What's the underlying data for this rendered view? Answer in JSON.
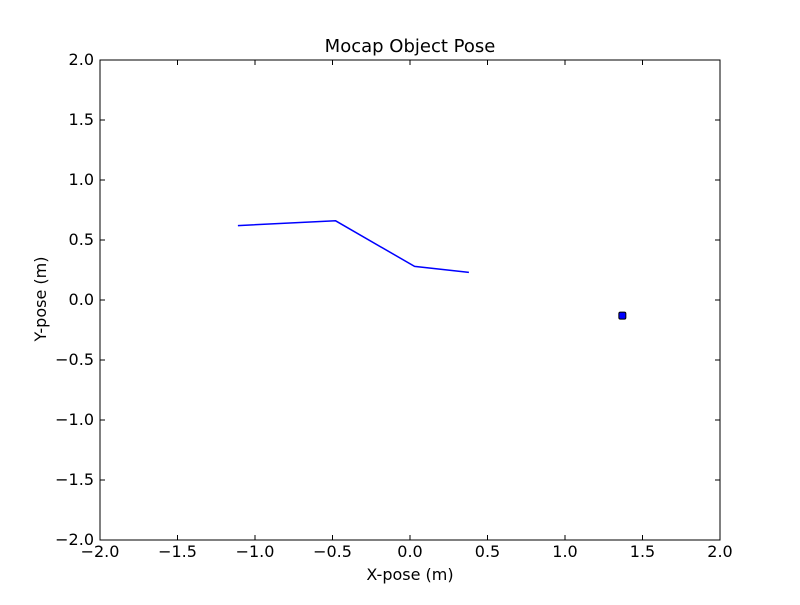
{
  "chart_data": {
    "type": "line",
    "title": "Mocap Object Pose",
    "xlabel": "X-pose (m)",
    "ylabel": "Y-pose (m)",
    "xlim": [
      -2.0,
      2.0
    ],
    "ylim": [
      -2.0,
      2.0
    ],
    "xticks": [
      -2.0,
      -1.5,
      -1.0,
      -0.5,
      0.0,
      0.5,
      1.0,
      1.5,
      2.0
    ],
    "yticks": [
      -2.0,
      -1.5,
      -1.0,
      -0.5,
      0.0,
      0.5,
      1.0,
      1.5,
      2.0
    ],
    "xtick_labels": [
      "−2.0",
      "−1.5",
      "−1.0",
      "−0.5",
      "0.0",
      "0.5",
      "1.0",
      "1.5",
      "2.0"
    ],
    "ytick_labels": [
      "−2.0",
      "−1.5",
      "−1.0",
      "−0.5",
      "0.0",
      "0.5",
      "1.0",
      "1.5",
      "2.0"
    ],
    "grid": false,
    "series": [
      {
        "type": "line",
        "color": "#0000ff",
        "x": [
          -1.11,
          -0.48,
          0.03,
          0.38
        ],
        "y": [
          0.62,
          0.66,
          0.28,
          0.23
        ]
      },
      {
        "type": "scatter",
        "marker": "square",
        "color": "#0000ff",
        "x": [
          1.37
        ],
        "y": [
          -0.13
        ]
      }
    ]
  }
}
